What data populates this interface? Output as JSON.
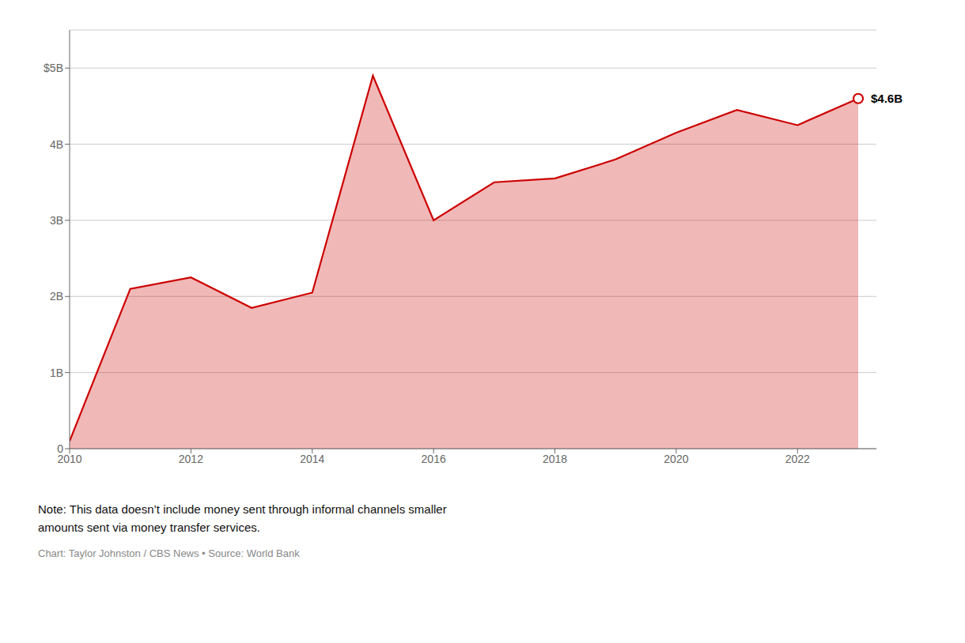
{
  "chart_data": {
    "type": "area",
    "x": [
      2010,
      2011,
      2012,
      2013,
      2014,
      2015,
      2016,
      2017,
      2018,
      2019,
      2020,
      2021,
      2022,
      2023
    ],
    "values": [
      0.1,
      2.1,
      2.25,
      1.85,
      2.05,
      4.9,
      3.0,
      3.5,
      3.55,
      3.8,
      4.15,
      4.45,
      4.25,
      4.6
    ],
    "color": "#cc0000",
    "xlim": [
      2010,
      2023.3
    ],
    "xticks": [
      2010,
      2012,
      2014,
      2016,
      2018,
      2020,
      2022
    ],
    "ylim": [
      0,
      5.5
    ],
    "yticks": [
      0,
      {
        "value": 1,
        "label": "1B"
      },
      {
        "value": 2,
        "label": "2B"
      },
      {
        "value": 3,
        "label": "3B"
      },
      {
        "value": 4,
        "label": "4B"
      },
      {
        "value": 5,
        "label": "$5B"
      }
    ],
    "grid": true,
    "annotations": [
      {
        "text": "$4.6B",
        "x": 2023,
        "y": 4.6
      }
    ],
    "note": "Note: This data doesn’t include money sent through informal channels smaller\namounts sent via money transfer services.",
    "credit": "Chart: Taylor Johnston / CBS News • Source: World Bank"
  }
}
